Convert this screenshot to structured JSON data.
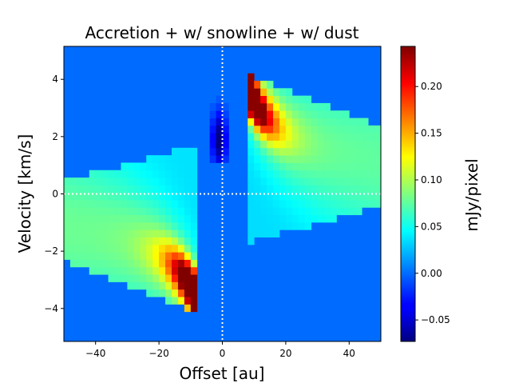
{
  "chart_data": {
    "type": "heatmap",
    "title": "Accretion + w/ snowline + w/ dust",
    "xlabel": "Offset [au]",
    "ylabel": "Velocity [km/s]",
    "colorbar_label": "mJy/pixel",
    "colormap": "jet",
    "xlim": [
      -50,
      50
    ],
    "ylim": [
      -5.15,
      5.15
    ],
    "clim": [
      -0.073,
      0.243
    ],
    "xticks": [
      -40,
      -20,
      0,
      20,
      40
    ],
    "xtick_labels": [
      "−40",
      "−20",
      "0",
      "20",
      "40"
    ],
    "yticks": [
      -4,
      -2,
      0,
      2,
      4
    ],
    "ytick_labels": [
      "−4",
      "−2",
      "0",
      "2",
      "4"
    ],
    "cbar_ticks": [
      -0.05,
      0.0,
      0.05,
      0.1,
      0.15,
      0.2
    ],
    "cbar_tick_labels": [
      "−0.05",
      "0.00",
      "0.05",
      "0.10",
      "0.15",
      "0.20"
    ],
    "reference_lines": {
      "x": 0,
      "y": 0,
      "style": "dotted",
      "color": "#ffffff"
    },
    "grid": false,
    "features": [
      {
        "name": "redshifted emission wing",
        "x_range_au": [
          8,
          50
        ],
        "v_range_kms": [
          -1.5,
          4.0
        ],
        "peak_value": 0.22,
        "peak_at": {
          "x_au": 11,
          "v_kms": 2.3
        }
      },
      {
        "name": "blueshifted emission wing",
        "x_range_au": [
          -50,
          -8
        ],
        "v_range_kms": [
          -4.9,
          0.7
        ],
        "peak_value": 0.24,
        "peak_at": {
          "x_au": -11,
          "v_kms": -3.9
        }
      },
      {
        "name": "absorption dip",
        "x_range_au": [
          -4,
          2
        ],
        "v_range_kms": [
          1.3,
          3.3
        ],
        "min_value": -0.072
      }
    ]
  }
}
